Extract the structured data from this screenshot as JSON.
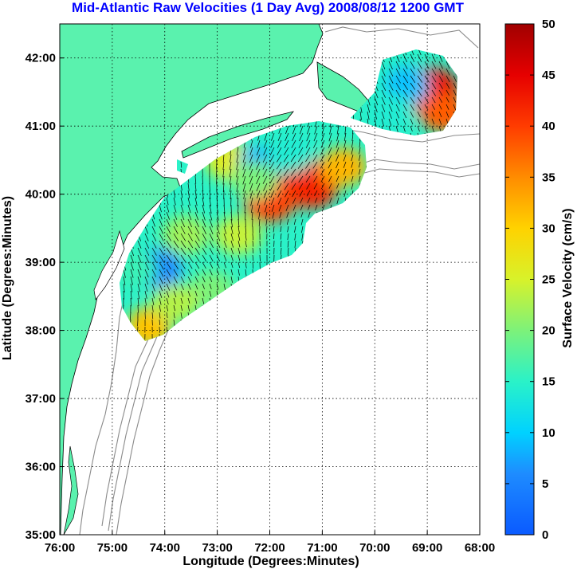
{
  "chart_data": {
    "type": "heatmap",
    "title": "Mid-Atlantic Raw Velocities (1 Day Avg) 2008/08/12 1200 GMT",
    "xlabel": "Longitude (Degrees:Minutes)",
    "ylabel": "Latitude (Degrees:Minutes)",
    "xlim": [
      -76,
      -68
    ],
    "ylim": [
      35,
      42.5
    ],
    "x_ticks": [
      {
        "value": -76,
        "label": "76:00"
      },
      {
        "value": -75,
        "label": "75:00"
      },
      {
        "value": -74,
        "label": "74:00"
      },
      {
        "value": -73,
        "label": "73:00"
      },
      {
        "value": -72,
        "label": "72:00"
      },
      {
        "value": -71,
        "label": "71:00"
      },
      {
        "value": -70,
        "label": "70:00"
      },
      {
        "value": -69,
        "label": "69:00"
      },
      {
        "value": -68,
        "label": "68:00"
      }
    ],
    "y_ticks": [
      {
        "value": 35,
        "label": "35:00"
      },
      {
        "value": 36,
        "label": "36:00"
      },
      {
        "value": 37,
        "label": "37:00"
      },
      {
        "value": 38,
        "label": "38:00"
      },
      {
        "value": 39,
        "label": "39:00"
      },
      {
        "value": 40,
        "label": "40:00"
      },
      {
        "value": 41,
        "label": "41:00"
      },
      {
        "value": 42,
        "label": "42:00"
      }
    ],
    "grid": true,
    "colorbar": {
      "label": "Surface Velocity (cm/s)",
      "range": [
        0,
        50
      ],
      "ticks": [
        0,
        5,
        10,
        15,
        20,
        25,
        30,
        35,
        40,
        45,
        50
      ],
      "colormap": "jet"
    },
    "colors": {
      "land": "#5af2ae",
      "title": "#0000ff",
      "bathymetry": "#8a8a8a",
      "vector": "#000000"
    },
    "hotspots": [
      {
        "lon": -71.2,
        "lat": 40.15,
        "speed": 42
      },
      {
        "lon": -72.0,
        "lat": 39.95,
        "speed": 40
      },
      {
        "lon": -68.9,
        "lat": 41.5,
        "speed": 44
      },
      {
        "lon": -74.3,
        "lat": 38.05,
        "speed": 31
      },
      {
        "lon": -72.8,
        "lat": 40.5,
        "speed": 26
      }
    ],
    "lowspots": [
      {
        "lon": -74.1,
        "lat": 38.9,
        "speed": 6
      },
      {
        "lon": -72.2,
        "lat": 40.4,
        "speed": 8
      },
      {
        "lon": -69.4,
        "lat": 41.6,
        "speed": 9
      }
    ]
  }
}
